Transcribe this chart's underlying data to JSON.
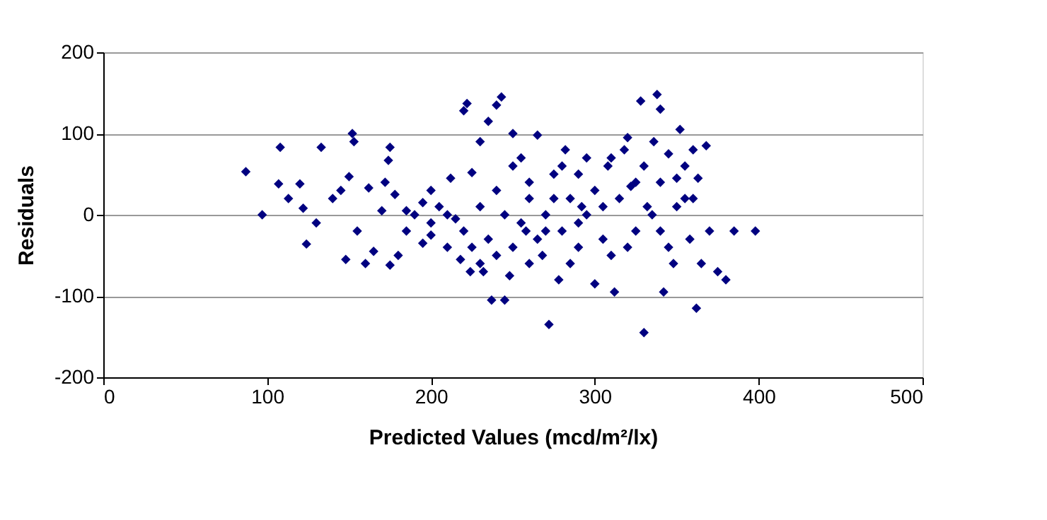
{
  "chart_data": {
    "type": "scatter",
    "xlabel": "Predicted Values (mcd/m²/lx)",
    "ylabel": "Residuals",
    "series": [
      {
        "color": "#000080",
        "x": [
          87,
          97,
          108,
          107,
          113,
          120,
          122,
          124,
          130,
          133,
          140,
          145,
          148,
          150,
          152,
          153,
          155,
          160,
          162,
          165,
          170,
          172,
          174,
          175,
          175,
          178,
          180,
          185,
          190,
          195,
          200,
          205,
          210,
          212,
          218,
          220,
          222,
          224,
          225,
          230,
          232,
          235,
          237,
          240,
          243,
          245,
          248,
          250,
          255,
          258,
          260,
          265,
          268,
          272,
          275,
          278,
          282,
          285,
          290,
          292,
          295,
          300,
          305,
          308,
          312,
          318,
          320,
          322,
          325,
          328,
          330,
          332,
          336,
          338,
          340,
          342,
          345,
          348,
          350,
          352,
          355,
          358,
          360,
          362,
          363,
          365,
          368,
          370,
          375,
          380,
          385,
          398,
          185,
          195,
          200,
          210,
          215,
          220,
          225,
          230,
          235,
          240,
          245,
          250,
          255,
          260,
          265,
          270,
          275,
          280,
          285,
          290,
          295,
          300,
          305,
          310,
          315,
          320,
          325,
          330,
          335,
          340,
          345,
          350,
          355,
          360,
          200,
          230,
          260,
          280,
          310,
          340,
          250,
          290,
          270,
          240
        ],
        "values": [
          53,
          0,
          83,
          38,
          20,
          38,
          8,
          -36,
          -10,
          83,
          20,
          30,
          -55,
          47,
          100,
          90,
          -20,
          -60,
          33,
          -45,
          5,
          40,
          67,
          -62,
          83,
          25,
          -50,
          -20,
          0,
          -35,
          -10,
          10,
          -40,
          45,
          -55,
          128,
          137,
          -70,
          52,
          90,
          -70,
          115,
          -105,
          135,
          145,
          -105,
          -75,
          100,
          70,
          -20,
          40,
          98,
          -50,
          -135,
          20,
          -80,
          80,
          -60,
          50,
          10,
          70,
          -85,
          -30,
          60,
          -95,
          80,
          95,
          35,
          -20,
          140,
          -145,
          10,
          90,
          148,
          130,
          -95,
          75,
          -60,
          45,
          105,
          20,
          -30,
          80,
          -115,
          45,
          -60,
          85,
          -20,
          -70,
          -80,
          -20,
          -20,
          5,
          15,
          -25,
          0,
          -5,
          -20,
          -40,
          10,
          -30,
          30,
          0,
          -40,
          -10,
          20,
          -30,
          0,
          50,
          -20,
          20,
          -40,
          0,
          30,
          10,
          -50,
          20,
          -40,
          40,
          60,
          0,
          40,
          -40,
          10,
          60,
          20,
          30,
          -60,
          -60,
          60,
          70,
          -20,
          60,
          -10,
          -20,
          -50
        ]
      }
    ],
    "marker": "diamond",
    "xlim": [
      0,
      500
    ],
    "xticks": [
      0,
      100,
      200,
      300,
      400,
      500
    ],
    "ylim": [
      -200,
      200
    ],
    "yticks": [
      -200,
      -100,
      0,
      100,
      200
    ],
    "grid": "y"
  }
}
